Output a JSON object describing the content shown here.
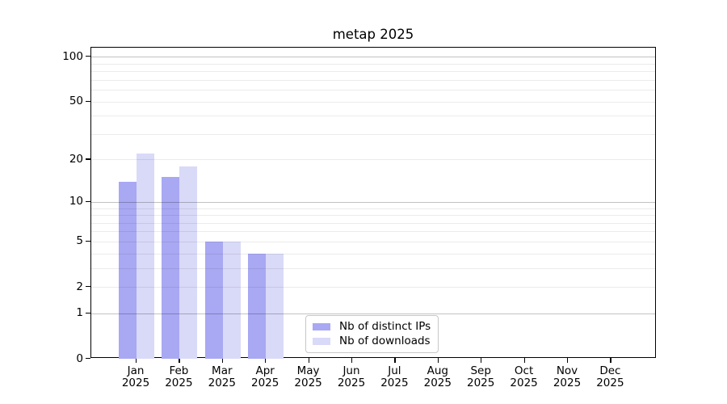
{
  "chart_data": {
    "type": "bar",
    "title": "metap 2025",
    "x_year": "2025",
    "categories": [
      "Jan",
      "Feb",
      "Mar",
      "Apr",
      "May",
      "Jun",
      "Jul",
      "Aug",
      "Sep",
      "Oct",
      "Nov",
      "Dec"
    ],
    "series": [
      {
        "name": "Nb of distinct IPs",
        "color": "#a8a8f3",
        "values": [
          14,
          15,
          5,
          4,
          0,
          0,
          0,
          0,
          0,
          0,
          0,
          0
        ]
      },
      {
        "name": "Nb of downloads",
        "color": "#d9d9f8",
        "values": [
          22,
          18,
          5,
          4,
          0,
          0,
          0,
          0,
          0,
          0,
          0,
          0
        ]
      }
    ],
    "y_scale": "log10(1+v)",
    "ylim": [
      0,
      115
    ],
    "y_ticks": [
      0,
      1,
      2,
      5,
      10,
      20,
      50,
      100
    ],
    "y_minor_gridlines": [
      2,
      3,
      4,
      5,
      6,
      7,
      8,
      9,
      20,
      30,
      40,
      50,
      60,
      70,
      80,
      90
    ],
    "y_major_gridlines": [
      1,
      10,
      100
    ],
    "grid": "horizontal, minor + major",
    "legend_position": "lower center",
    "colors": {
      "minor_grid": "#ebebeb",
      "major_grid": "#c2c2c2",
      "spine": "#000000",
      "text": "#000000",
      "background": "#ffffff"
    }
  }
}
